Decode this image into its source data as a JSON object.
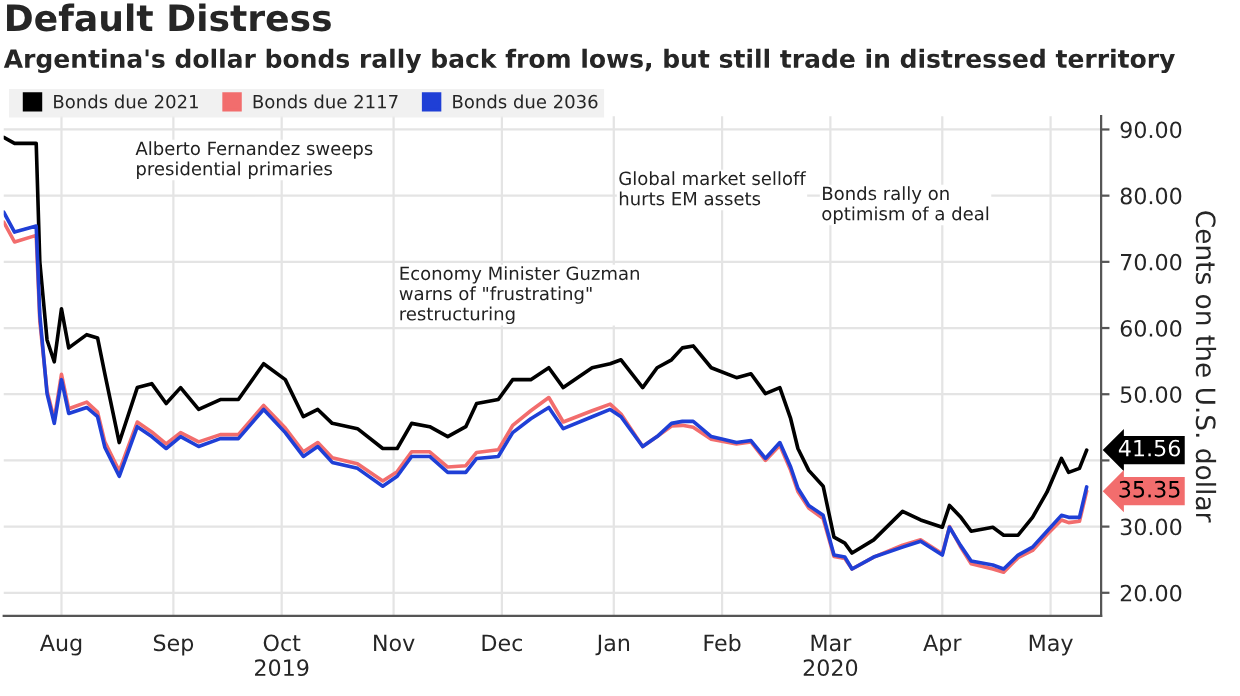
{
  "chart_data": {
    "type": "line",
    "title": "Default Distress",
    "subtitle": "Argentina's dollar bonds rally back from lows, but still trade in distressed territory",
    "ylabel": "Cents on the U.S. dollar",
    "x": [
      "2019-07-31",
      "2019-08-03",
      "2019-08-09",
      "2019-08-10",
      "2019-08-12",
      "2019-08-14",
      "2019-08-16",
      "2019-08-18",
      "2019-08-23",
      "2019-08-26",
      "2019-08-28",
      "2019-09-01",
      "2019-09-06",
      "2019-09-10",
      "2019-09-14",
      "2019-09-18",
      "2019-09-23",
      "2019-09-29",
      "2019-10-04",
      "2019-10-11",
      "2019-10-17",
      "2019-10-22",
      "2019-10-26",
      "2019-10-30",
      "2019-11-06",
      "2019-11-13",
      "2019-11-17",
      "2019-11-21",
      "2019-11-26",
      "2019-12-01",
      "2019-12-06",
      "2019-12-09",
      "2019-12-15",
      "2019-12-19",
      "2019-12-24",
      "2019-12-29",
      "2020-01-02",
      "2020-01-10",
      "2020-01-15",
      "2020-01-18",
      "2020-01-24",
      "2020-01-28",
      "2020-02-01",
      "2020-02-04",
      "2020-02-07",
      "2020-02-12",
      "2020-02-19",
      "2020-02-23",
      "2020-02-27",
      "2020-03-02",
      "2020-03-05",
      "2020-03-07",
      "2020-03-10",
      "2020-03-14",
      "2020-03-17",
      "2020-03-20",
      "2020-03-22",
      "2020-03-28",
      "2020-04-05",
      "2020-04-10",
      "2020-04-16",
      "2020-04-18",
      "2020-04-21",
      "2020-04-24",
      "2020-04-30",
      "2020-05-03",
      "2020-05-07",
      "2020-05-11",
      "2020-05-15",
      "2020-05-19",
      "2020-05-21",
      "2020-05-24",
      "2020-05-26"
    ],
    "series": [
      {
        "name": "Bonds due 2021",
        "color": "#000000",
        "values": [
          88.8,
          87.9,
          87.9,
          70,
          58.2,
          54.9,
          62.9,
          57,
          59,
          58.5,
          53.1,
          42.7,
          51,
          51.6,
          48.6,
          51,
          47.7,
          49.2,
          49.2,
          54.6,
          52.2,
          46.6,
          47.7,
          45.6,
          44.8,
          41.8,
          41.8,
          45.6,
          45.1,
          43.6,
          45.1,
          48.6,
          49.2,
          52.2,
          52.2,
          54,
          51,
          54,
          54.6,
          55.2,
          51,
          54,
          55.2,
          57,
          57.3,
          54,
          52.5,
          53.1,
          50.1,
          51,
          46.3,
          41.8,
          38.5,
          36.1,
          28.4,
          27.5,
          26,
          28,
          32.3,
          31,
          29.9,
          33.2,
          31.5,
          29.3,
          29.9,
          28.7,
          28.7,
          31.4,
          35.2,
          40.3,
          38.2,
          38.8,
          41.56
        ],
        "value_labels": [
          null,
          null,
          null,
          null,
          null,
          null,
          null,
          null,
          null,
          null,
          null,
          null,
          null,
          null,
          null,
          null,
          null,
          null,
          null,
          null,
          null,
          null,
          null,
          null,
          null,
          null,
          null,
          null,
          null,
          null,
          null,
          null,
          null,
          null,
          null,
          null,
          null,
          null,
          null,
          null,
          null,
          null,
          null,
          null,
          null,
          null,
          null,
          null,
          null,
          null,
          null,
          null,
          null,
          null,
          null,
          null,
          null,
          null,
          null,
          null,
          null,
          null,
          null,
          null,
          null,
          null,
          null,
          null,
          null,
          null,
          null,
          null,
          "41.56"
        ]
      },
      {
        "name": "Bonds due 2117",
        "color": "#f26d6d",
        "values": [
          76.0,
          73.0,
          74.0,
          61,
          50.5,
          46.2,
          53.0,
          47.8,
          48.8,
          47.3,
          42.8,
          38.4,
          45.8,
          44.3,
          42.5,
          44.2,
          42.8,
          43.9,
          43.9,
          48.3,
          44.9,
          41.3,
          42.7,
          40.4,
          39.5,
          36.9,
          38.3,
          41.3,
          41.3,
          39.0,
          39.2,
          41.2,
          41.6,
          45.3,
          47.5,
          49.5,
          45.8,
          47.5,
          48.5,
          47.0,
          42.1,
          43.6,
          45.2,
          45.3,
          45.0,
          43.2,
          42.5,
          42.8,
          40.0,
          42.3,
          38.5,
          35.3,
          32.8,
          31.2,
          25.5,
          25.2,
          23.6,
          25.4,
          27.2,
          28.0,
          25.9,
          30.0,
          27.0,
          24.4,
          23.6,
          23.1,
          25.3,
          26.4,
          28.8,
          31.0,
          30.6,
          30.8,
          35.35
        ],
        "value_labels": [
          null,
          null,
          null,
          null,
          null,
          null,
          null,
          null,
          null,
          null,
          null,
          null,
          null,
          null,
          null,
          null,
          null,
          null,
          null,
          null,
          null,
          null,
          null,
          null,
          null,
          null,
          null,
          null,
          null,
          null,
          null,
          null,
          null,
          null,
          null,
          null,
          null,
          null,
          null,
          null,
          null,
          null,
          null,
          null,
          null,
          null,
          null,
          null,
          null,
          null,
          null,
          null,
          null,
          null,
          null,
          null,
          null,
          null,
          null,
          null,
          null,
          null,
          null,
          null,
          null,
          null,
          null,
          null,
          null,
          null,
          null,
          null,
          "35.35"
        ]
      },
      {
        "name": "Bonds due 2036",
        "color": "#1f3fd6",
        "values": [
          77.5,
          74.5,
          75.4,
          62,
          50.1,
          45.6,
          52.2,
          47.1,
          48,
          46.6,
          42,
          37.6,
          45.1,
          43.6,
          41.8,
          43.6,
          42.1,
          43.3,
          43.3,
          47.7,
          44.2,
          40.6,
          42.1,
          39.7,
          38.8,
          36.1,
          37.6,
          40.6,
          40.6,
          38.2,
          38.2,
          40.3,
          40.6,
          44.2,
          46.3,
          48,
          44.8,
          46.6,
          47.7,
          46.6,
          42.1,
          43.6,
          45.6,
          45.9,
          45.9,
          43.6,
          42.7,
          43,
          40.3,
          42.7,
          39,
          35.8,
          33.2,
          31.7,
          25.7,
          25.4,
          23.6,
          25.4,
          26.9,
          27.8,
          25.7,
          29.9,
          27.2,
          24.8,
          24.2,
          23.6,
          25.7,
          26.9,
          29.3,
          31.7,
          31.4,
          31.4,
          36.0
        ]
      }
    ],
    "xlim": [
      "2019-07-31",
      "2020-05-30"
    ],
    "xticks": [
      {
        "value": "2019-08-16",
        "label": "Aug"
      },
      {
        "value": "2019-09-16",
        "label": "Sep"
      },
      {
        "value": "2019-10-16",
        "label": "Oct\n2019"
      },
      {
        "value": "2019-11-16",
        "label": "Nov"
      },
      {
        "value": "2019-12-16",
        "label": "Dec"
      },
      {
        "value": "2020-01-16",
        "label": "Jan"
      },
      {
        "value": "2020-02-15",
        "label": "Feb"
      },
      {
        "value": "2020-03-16",
        "label": "Mar\n2020"
      },
      {
        "value": "2020-04-16",
        "label": "Apr"
      },
      {
        "value": "2020-05-16",
        "label": "May"
      }
    ],
    "ylim": [
      16.5,
      92
    ],
    "yticks": [
      {
        "value": 20,
        "label": "20.00"
      },
      {
        "value": 30,
        "label": "30.00"
      },
      {
        "value": 40,
        "label": null
      },
      {
        "value": 50,
        "label": "50.00"
      },
      {
        "value": 60,
        "label": "60.00"
      },
      {
        "value": 70,
        "label": "70.00"
      },
      {
        "value": 80,
        "label": "80.00"
      },
      {
        "value": 90,
        "label": "90.00"
      }
    ],
    "annotations": [
      "Alberto Fernandez sweeps\npresidential primaries",
      "Economy Minister Guzman\nwarns of \"frustrating\"\nrestructuring",
      "Global market selloff\nhurts EM assets",
      "Bonds rally on\noptimism of a deal"
    ],
    "grid": true,
    "legend": "top left",
    "marker": "none",
    "line_style": "solid"
  }
}
